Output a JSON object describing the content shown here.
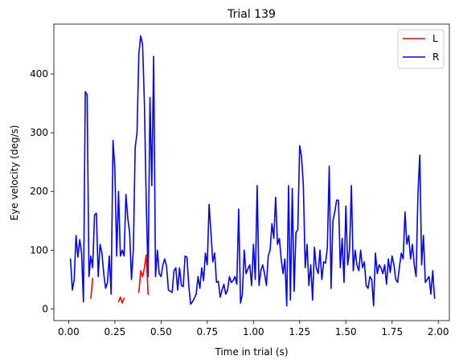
{
  "chart_data": {
    "type": "line",
    "title": "Trial 139",
    "xlabel": "Time in trial (s)",
    "ylabel": "Eye velocity (deg/s)",
    "xlim": [
      -0.08,
      2.06
    ],
    "ylim": [
      -20,
      485
    ],
    "xticks": [
      0.0,
      0.25,
      0.5,
      0.75,
      1.0,
      1.25,
      1.5,
      1.75,
      2.0
    ],
    "xtick_labels": [
      "0.00",
      "0.25",
      "0.50",
      "0.75",
      "1.00",
      "1.25",
      "1.50",
      "1.75",
      "2.00"
    ],
    "yticks": [
      0,
      100,
      200,
      300,
      400
    ],
    "ytick_labels": [
      "0",
      "100",
      "200",
      "300",
      "400"
    ],
    "grid": false,
    "legend_position": "top-right",
    "series": [
      {
        "name": "L",
        "color": "#ff0000",
        "segments": [
          [
            [
              0.12,
              18
            ],
            [
              0.13,
              52
            ]
          ],
          [
            [
              0.27,
              12
            ],
            [
              0.28,
              20
            ],
            [
              0.29,
              10
            ],
            [
              0.3,
              18
            ]
          ],
          [
            [
              0.38,
              28
            ],
            [
              0.39,
              65
            ],
            [
              0.4,
              55
            ],
            [
              0.41,
              70
            ],
            [
              0.42,
              92
            ],
            [
              0.43,
              25
            ]
          ]
        ]
      },
      {
        "name": "R",
        "color": "#0000ff",
        "segments": [
          [
            [
              0.01,
              85
            ],
            [
              0.02,
              32
            ],
            [
              0.03,
              50
            ],
            [
              0.04,
              125
            ],
            [
              0.05,
              88
            ],
            [
              0.06,
              118
            ],
            [
              0.07,
              95
            ],
            [
              0.08,
              12
            ],
            [
              0.09,
              370
            ],
            [
              0.1,
              365
            ],
            [
              0.11,
              55
            ],
            [
              0.12,
              90
            ],
            [
              0.13,
              70
            ],
            [
              0.14,
              160
            ],
            [
              0.15,
              163
            ],
            [
              0.16,
              55
            ],
            [
              0.17,
              110
            ],
            [
              0.18,
              95
            ],
            [
              0.19,
              60
            ],
            [
              0.2,
              35
            ],
            [
              0.21,
              45
            ],
            [
              0.22,
              90
            ],
            [
              0.23,
              25
            ],
            [
              0.24,
              287
            ],
            [
              0.25,
              240
            ],
            [
              0.26,
              90
            ],
            [
              0.27,
              200
            ],
            [
              0.28,
              90
            ],
            [
              0.29,
              100
            ],
            [
              0.3,
              90
            ],
            [
              0.31,
              195
            ],
            [
              0.32,
              155
            ],
            [
              0.33,
              130
            ],
            [
              0.34,
              50
            ],
            [
              0.35,
              100
            ],
            [
              0.36,
              275
            ],
            [
              0.37,
              300
            ],
            [
              0.38,
              435
            ],
            [
              0.39,
              465
            ],
            [
              0.4,
              450
            ],
            [
              0.41,
              350
            ],
            [
              0.42,
              180
            ],
            [
              0.43,
              55
            ],
            [
              0.44,
              360
            ],
            [
              0.45,
              210
            ],
            [
              0.46,
              430
            ],
            [
              0.47,
              55
            ],
            [
              0.48,
              100
            ],
            [
              0.49,
              60
            ],
            [
              0.5,
              55
            ],
            [
              0.51,
              75
            ],
            [
              0.52,
              85
            ],
            [
              0.53,
              72
            ],
            [
              0.54,
              32
            ],
            [
              0.55,
              30
            ],
            [
              0.56,
              28
            ],
            [
              0.57,
              65
            ],
            [
              0.58,
              70
            ],
            [
              0.59,
              32
            ],
            [
              0.6,
              70
            ],
            [
              0.61,
              40
            ],
            [
              0.62,
              38
            ],
            [
              0.63,
              90
            ],
            [
              0.64,
              88
            ],
            [
              0.65,
              40
            ],
            [
              0.66,
              8
            ],
            [
              0.67,
              12
            ],
            [
              0.68,
              18
            ],
            [
              0.69,
              25
            ],
            [
              0.7,
              55
            ],
            [
              0.71,
              35
            ],
            [
              0.72,
              70
            ],
            [
              0.73,
              48
            ],
            [
              0.74,
              95
            ],
            [
              0.75,
              75
            ],
            [
              0.76,
              178
            ],
            [
              0.77,
              130
            ],
            [
              0.78,
              80
            ],
            [
              0.79,
              95
            ],
            [
              0.8,
              45
            ],
            [
              0.81,
              47
            ],
            [
              0.82,
              20
            ],
            [
              0.83,
              32
            ],
            [
              0.84,
              42
            ],
            [
              0.85,
              25
            ],
            [
              0.86,
              32
            ],
            [
              0.87,
              55
            ],
            [
              0.88,
              45
            ],
            [
              0.89,
              48
            ],
            [
              0.9,
              55
            ],
            [
              0.91,
              42
            ],
            [
              0.92,
              170
            ],
            [
              0.93,
              10
            ],
            [
              0.94,
              25
            ],
            [
              0.95,
              100
            ],
            [
              0.96,
              60
            ],
            [
              0.97,
              68
            ],
            [
              0.98,
              75
            ],
            [
              0.99,
              40
            ],
            [
              1.0,
              110
            ],
            [
              1.01,
              50
            ],
            [
              1.02,
              210
            ],
            [
              1.03,
              40
            ],
            [
              1.04,
              65
            ],
            [
              1.05,
              75
            ],
            [
              1.06,
              60
            ],
            [
              1.07,
              40
            ],
            [
              1.08,
              90
            ],
            [
              1.09,
              100
            ],
            [
              1.1,
              145
            ],
            [
              1.11,
              120
            ],
            [
              1.12,
              190
            ],
            [
              1.13,
              110
            ],
            [
              1.14,
              120
            ],
            [
              1.15,
              85
            ],
            [
              1.16,
              60
            ],
            [
              1.17,
              85
            ],
            [
              1.18,
              5
            ],
            [
              1.19,
              210
            ],
            [
              1.2,
              15
            ],
            [
              1.21,
              205
            ],
            [
              1.22,
              30
            ],
            [
              1.23,
              130
            ],
            [
              1.24,
              135
            ],
            [
              1.25,
              278
            ],
            [
              1.26,
              260
            ],
            [
              1.27,
              210
            ],
            [
              1.28,
              70
            ],
            [
              1.29,
              110
            ],
            [
              1.3,
              40
            ],
            [
              1.31,
              75
            ],
            [
              1.32,
              15
            ],
            [
              1.33,
              105
            ],
            [
              1.34,
              70
            ],
            [
              1.35,
              60
            ],
            [
              1.36,
              100
            ],
            [
              1.37,
              50
            ],
            [
              1.38,
              80
            ],
            [
              1.39,
              78
            ],
            [
              1.4,
              105
            ],
            [
              1.41,
              243
            ],
            [
              1.42,
              35
            ],
            [
              1.43,
              150
            ],
            [
              1.44,
              165
            ],
            [
              1.45,
              185
            ],
            [
              1.46,
              185
            ],
            [
              1.47,
              70
            ],
            [
              1.48,
              120
            ],
            [
              1.49,
              45
            ],
            [
              1.5,
              175
            ],
            [
              1.51,
              75
            ],
            [
              1.52,
              100
            ],
            [
              1.53,
              210
            ],
            [
              1.54,
              65
            ],
            [
              1.55,
              100
            ],
            [
              1.56,
              75
            ],
            [
              1.57,
              65
            ],
            [
              1.58,
              100
            ],
            [
              1.59,
              70
            ],
            [
              1.6,
              80
            ],
            [
              1.61,
              40
            ],
            [
              1.62,
              35
            ],
            [
              1.63,
              55
            ],
            [
              1.64,
              50
            ],
            [
              1.65,
              5
            ],
            [
              1.66,
              95
            ],
            [
              1.67,
              60
            ],
            [
              1.68,
              75
            ],
            [
              1.69,
              70
            ],
            [
              1.7,
              60
            ],
            [
              1.71,
              75
            ],
            [
              1.72,
              42
            ],
            [
              1.73,
              85
            ],
            [
              1.74,
              62
            ],
            [
              1.75,
              90
            ],
            [
              1.76,
              75
            ],
            [
              1.77,
              50
            ],
            [
              1.78,
              45
            ],
            [
              1.79,
              72
            ],
            [
              1.8,
              95
            ],
            [
              1.81,
              85
            ],
            [
              1.82,
              165
            ],
            [
              1.83,
              110
            ],
            [
              1.84,
              125
            ],
            [
              1.85,
              85
            ],
            [
              1.86,
              110
            ],
            [
              1.87,
              75
            ],
            [
              1.88,
              55
            ],
            [
              1.89,
              195
            ],
            [
              1.9,
              262
            ],
            [
              1.91,
              75
            ],
            [
              1.92,
              125
            ],
            [
              1.93,
              45
            ],
            [
              1.94,
              50
            ],
            [
              1.95,
              55
            ],
            [
              1.96,
              25
            ],
            [
              1.97,
              65
            ],
            [
              1.98,
              18
            ]
          ]
        ]
      }
    ]
  }
}
